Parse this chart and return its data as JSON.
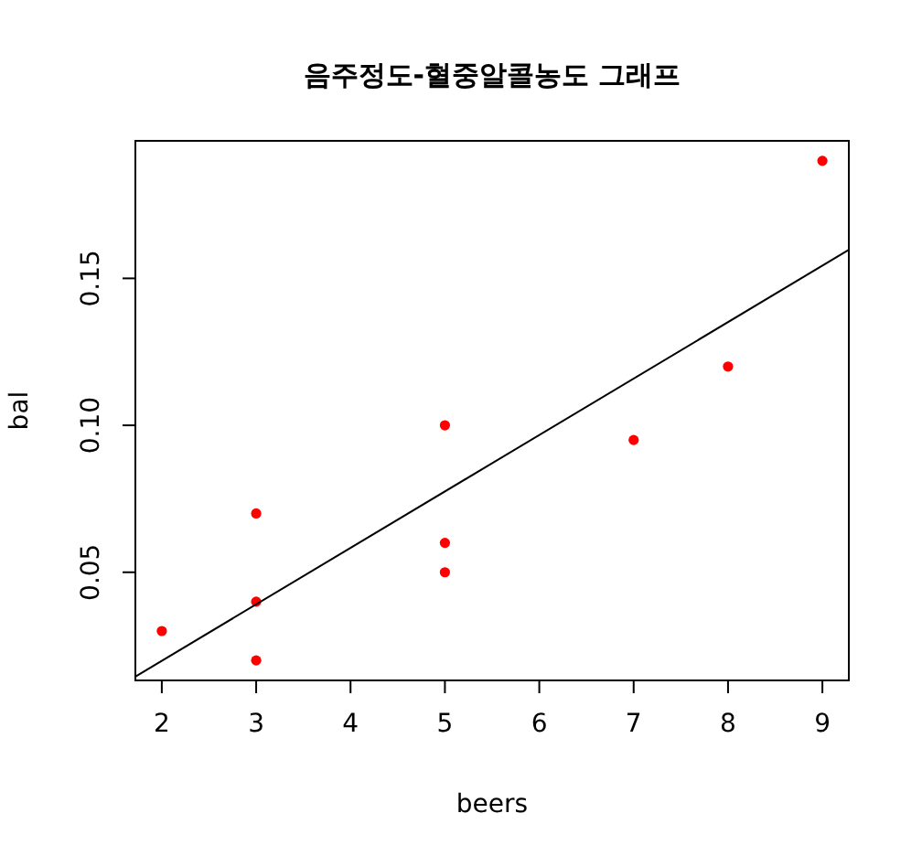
{
  "chart_data": {
    "type": "scatter",
    "title": "음주정도-혈중알콜농도 그래프",
    "xlabel": "beers",
    "ylabel": "bal",
    "xlim": [
      1.72,
      9.28
    ],
    "ylim": [
      0.0132,
      0.1968
    ],
    "xticks": [
      2,
      3,
      4,
      5,
      6,
      7,
      8,
      9
    ],
    "yticks": [
      {
        "value": 0.05,
        "label": "0.05"
      },
      {
        "value": 0.1,
        "label": "0.10"
      },
      {
        "value": 0.15,
        "label": "0.15"
      }
    ],
    "series": [
      {
        "marker": "circle",
        "color": "#ff0000",
        "x": [
          2,
          3,
          3,
          3,
          5,
          5,
          5,
          7,
          8,
          9
        ],
        "values": [
          0.03,
          0.07,
          0.04,
          0.02,
          0.1,
          0.06,
          0.05,
          0.095,
          0.12,
          0.19
        ]
      },
      {
        "type": "line",
        "color": "#000000",
        "x": [
          1.72,
          9.28
        ],
        "values": [
          0.0145,
          0.1597
        ]
      }
    ]
  }
}
